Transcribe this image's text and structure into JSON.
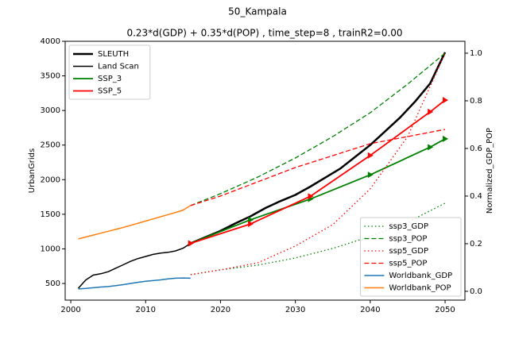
{
  "chart_data": {
    "type": "line",
    "suptitle": "50_Kampala",
    "title": "0.23*d(GDP) + 0.35*d(POP) , time_step=8 , trainR2=0.00",
    "ylabel": "UrbanGrids",
    "y2label": "Normalized_GDP_POP",
    "xlim": [
      1999.25,
      2052.65
    ],
    "ylim": [
      259,
      4000
    ],
    "y2lim": [
      -0.037,
      1.05
    ],
    "xticks": [
      2000,
      2010,
      2020,
      2030,
      2040,
      2050
    ],
    "yticks": [
      500,
      1000,
      1500,
      2000,
      2500,
      3000,
      3500,
      4000
    ],
    "y2ticks": [
      {
        "value": 0,
        "label": "0.0"
      },
      {
        "value": 0.2,
        "label": "0.2"
      },
      {
        "value": 0.4,
        "label": "0.4"
      },
      {
        "value": 0.6,
        "label": "0.6"
      },
      {
        "value": 0.8,
        "label": "0.8"
      },
      {
        "value": 1.0,
        "label": "1.0"
      }
    ],
    "legend": "upper left",
    "legend2": "lower right",
    "series": [
      {
        "name": "SLEUTH",
        "color": "#000000",
        "width": 2.5,
        "dash": "solid",
        "x": [
          2016,
          2018,
          2020,
          2022,
          2024,
          2026,
          2028,
          2030,
          2032,
          2034,
          2036,
          2038,
          2040,
          2042,
          2044,
          2046,
          2048,
          2050
        ],
        "values": [
          1080,
          1170,
          1260,
          1370,
          1470,
          1590,
          1690,
          1780,
          1900,
          2030,
          2160,
          2330,
          2500,
          2700,
          2900,
          3130,
          3390,
          3840
        ]
      },
      {
        "name": "Land Scan",
        "color": "#000000",
        "width": 1.5,
        "dash": "solid",
        "x": [
          2001,
          2002,
          2003,
          2004,
          2005,
          2006,
          2007,
          2008,
          2009,
          2010,
          2011,
          2012,
          2013,
          2014,
          2015,
          2016
        ],
        "values": [
          430,
          550,
          620,
          640,
          670,
          720,
          770,
          820,
          860,
          890,
          920,
          940,
          950,
          970,
          1010,
          1080
        ]
      },
      {
        "name": "SSP_3",
        "color": "#008000",
        "width": 1.8,
        "dash": "solid",
        "marker": "triangle",
        "x": [
          2016,
          2024,
          2032,
          2040,
          2048,
          2050
        ],
        "values": [
          1080,
          1420,
          1720,
          2070,
          2470,
          2590
        ]
      },
      {
        "name": "SSP_5",
        "color": "#ff0000",
        "width": 1.8,
        "dash": "solid",
        "marker": "triangle",
        "x": [
          2016,
          2024,
          2032,
          2040,
          2048,
          2050
        ],
        "values": [
          1080,
          1360,
          1760,
          2350,
          2980,
          3150
        ]
      },
      {
        "name": "ssp3_GDP",
        "color": "#008000",
        "width": 1.3,
        "dash": "dotted",
        "axis": "y2",
        "x": [
          2016,
          2020,
          2025,
          2030,
          2035,
          2040,
          2045,
          2050
        ],
        "values": [
          0.07,
          0.09,
          0.11,
          0.14,
          0.18,
          0.23,
          0.29,
          0.37
        ]
      },
      {
        "name": "ssp3_POP",
        "color": "#008000",
        "width": 1.3,
        "dash": "dashed",
        "axis": "y2",
        "x": [
          2016,
          2020,
          2025,
          2030,
          2035,
          2040,
          2045,
          2050
        ],
        "values": [
          0.36,
          0.41,
          0.48,
          0.56,
          0.65,
          0.75,
          0.87,
          1.0
        ]
      },
      {
        "name": "ssp5_GDP",
        "color": "#ff0000",
        "width": 1.3,
        "dash": "dotted",
        "axis": "y2",
        "x": [
          2016,
          2020,
          2025,
          2030,
          2035,
          2040,
          2045,
          2050
        ],
        "values": [
          0.07,
          0.09,
          0.12,
          0.19,
          0.28,
          0.43,
          0.65,
          1.0
        ]
      },
      {
        "name": "ssp5_POP",
        "color": "#ff0000",
        "width": 1.3,
        "dash": "dashed",
        "axis": "y2",
        "x": [
          2016,
          2020,
          2025,
          2030,
          2035,
          2040,
          2045,
          2050
        ],
        "values": [
          0.36,
          0.4,
          0.46,
          0.52,
          0.57,
          0.62,
          0.65,
          0.68
        ]
      },
      {
        "name": "Worldbank_GDP",
        "color": "#1f77b4",
        "width": 1.5,
        "dash": "solid",
        "axis": "y2",
        "x": [
          2001,
          2002,
          2003,
          2004,
          2005,
          2006,
          2007,
          2008,
          2009,
          2010,
          2011,
          2012,
          2013,
          2014,
          2015,
          2016
        ],
        "values": [
          0.01,
          0.012,
          0.015,
          0.018,
          0.02,
          0.024,
          0.028,
          0.033,
          0.038,
          0.042,
          0.045,
          0.048,
          0.052,
          0.055,
          0.056,
          0.055
        ]
      },
      {
        "name": "Worldbank_POP",
        "color": "#ff7f0e",
        "width": 1.5,
        "dash": "solid",
        "axis": "y2",
        "x": [
          2001,
          2002,
          2003,
          2004,
          2005,
          2006,
          2007,
          2008,
          2009,
          2010,
          2011,
          2012,
          2013,
          2014,
          2015,
          2016
        ],
        "values": [
          0.22,
          0.228,
          0.236,
          0.244,
          0.252,
          0.26,
          0.268,
          0.277,
          0.286,
          0.295,
          0.304,
          0.313,
          0.322,
          0.331,
          0.341,
          0.36
        ]
      }
    ]
  }
}
